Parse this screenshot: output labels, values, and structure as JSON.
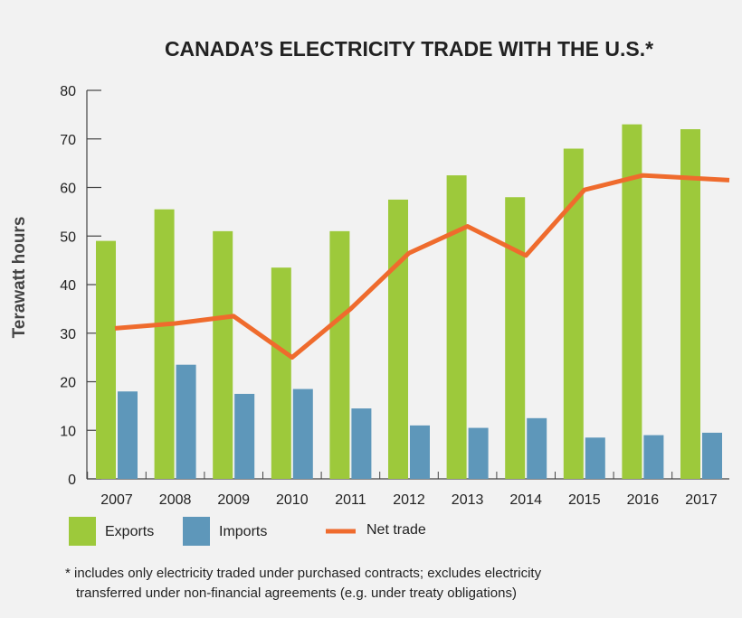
{
  "chart_data": {
    "type": "bar",
    "title": "CANADA’S ELECTRICITY TRADE WITH THE U.S.*",
    "ylabel": "Terawatt hours",
    "xlabel": "",
    "ylim": [
      0,
      80
    ],
    "yticks": [
      0,
      10,
      20,
      30,
      40,
      50,
      60,
      70,
      80
    ],
    "categories": [
      "2007",
      "2008",
      "2009",
      "2010",
      "2011",
      "2012",
      "2013",
      "2014",
      "2015",
      "2016",
      "2017"
    ],
    "series": [
      {
        "name": "Exports",
        "type": "bar",
        "color": "#9dc93b",
        "values": [
          49,
          55.5,
          51,
          43.5,
          51,
          57.5,
          62.5,
          58,
          68,
          73,
          72
        ]
      },
      {
        "name": "Imports",
        "type": "bar",
        "color": "#5e97ba",
        "values": [
          18,
          23.5,
          17.5,
          18.5,
          14.5,
          11,
          10.5,
          12.5,
          8.5,
          9,
          9.5
        ]
      },
      {
        "name": "Net trade",
        "type": "line",
        "color": "#ef6b2d",
        "values": [
          31,
          32,
          33.5,
          25,
          35,
          46.5,
          52,
          46,
          59.5,
          62.5,
          61.5
        ]
      }
    ],
    "grid": false,
    "legend_position": "bottom"
  },
  "footnote": {
    "line1": "* includes only electricity traded under purchased contracts; excludes electricity",
    "line2": "transferred under non-financial agreements (e.g. under treaty obligations)"
  }
}
